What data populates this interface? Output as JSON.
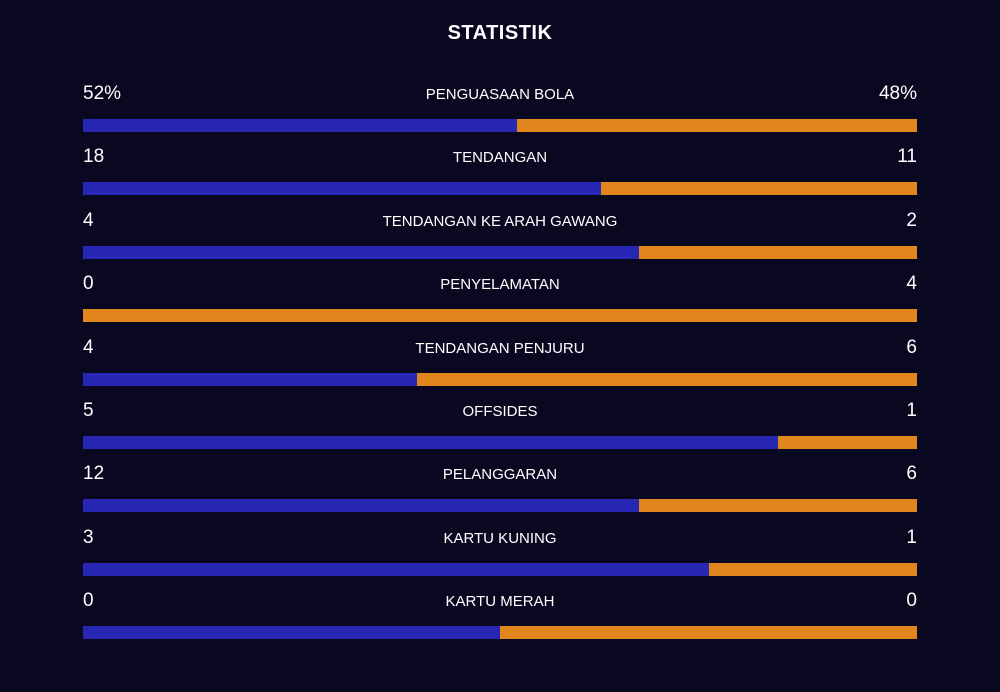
{
  "title": "STATISTIK",
  "colors": {
    "background": "#0a0821",
    "home_bar": "#2727b3",
    "away_bar": "#e0861d"
  },
  "stats": [
    {
      "label": "PENGUASAAN BOLA",
      "home": "52%",
      "away": "48%",
      "home_value": 52,
      "away_value": 48
    },
    {
      "label": "TENDANGAN",
      "home": "18",
      "away": "11",
      "home_value": 18,
      "away_value": 11
    },
    {
      "label": "TENDANGAN KE ARAH GAWANG",
      "home": "4",
      "away": "2",
      "home_value": 4,
      "away_value": 2
    },
    {
      "label": "PENYELAMATAN",
      "home": "0",
      "away": "4",
      "home_value": 0,
      "away_value": 4
    },
    {
      "label": "TENDANGAN PENJURU",
      "home": "4",
      "away": "6",
      "home_value": 4,
      "away_value": 6
    },
    {
      "label": "OFFSIDES",
      "home": "5",
      "away": "1",
      "home_value": 5,
      "away_value": 1
    },
    {
      "label": "PELANGGARAN",
      "home": "12",
      "away": "6",
      "home_value": 12,
      "away_value": 6
    },
    {
      "label": "KARTU KUNING",
      "home": "3",
      "away": "1",
      "home_value": 3,
      "away_value": 1
    },
    {
      "label": "KARTU MERAH",
      "home": "0",
      "away": "0",
      "home_value": 0,
      "away_value": 0
    }
  ]
}
